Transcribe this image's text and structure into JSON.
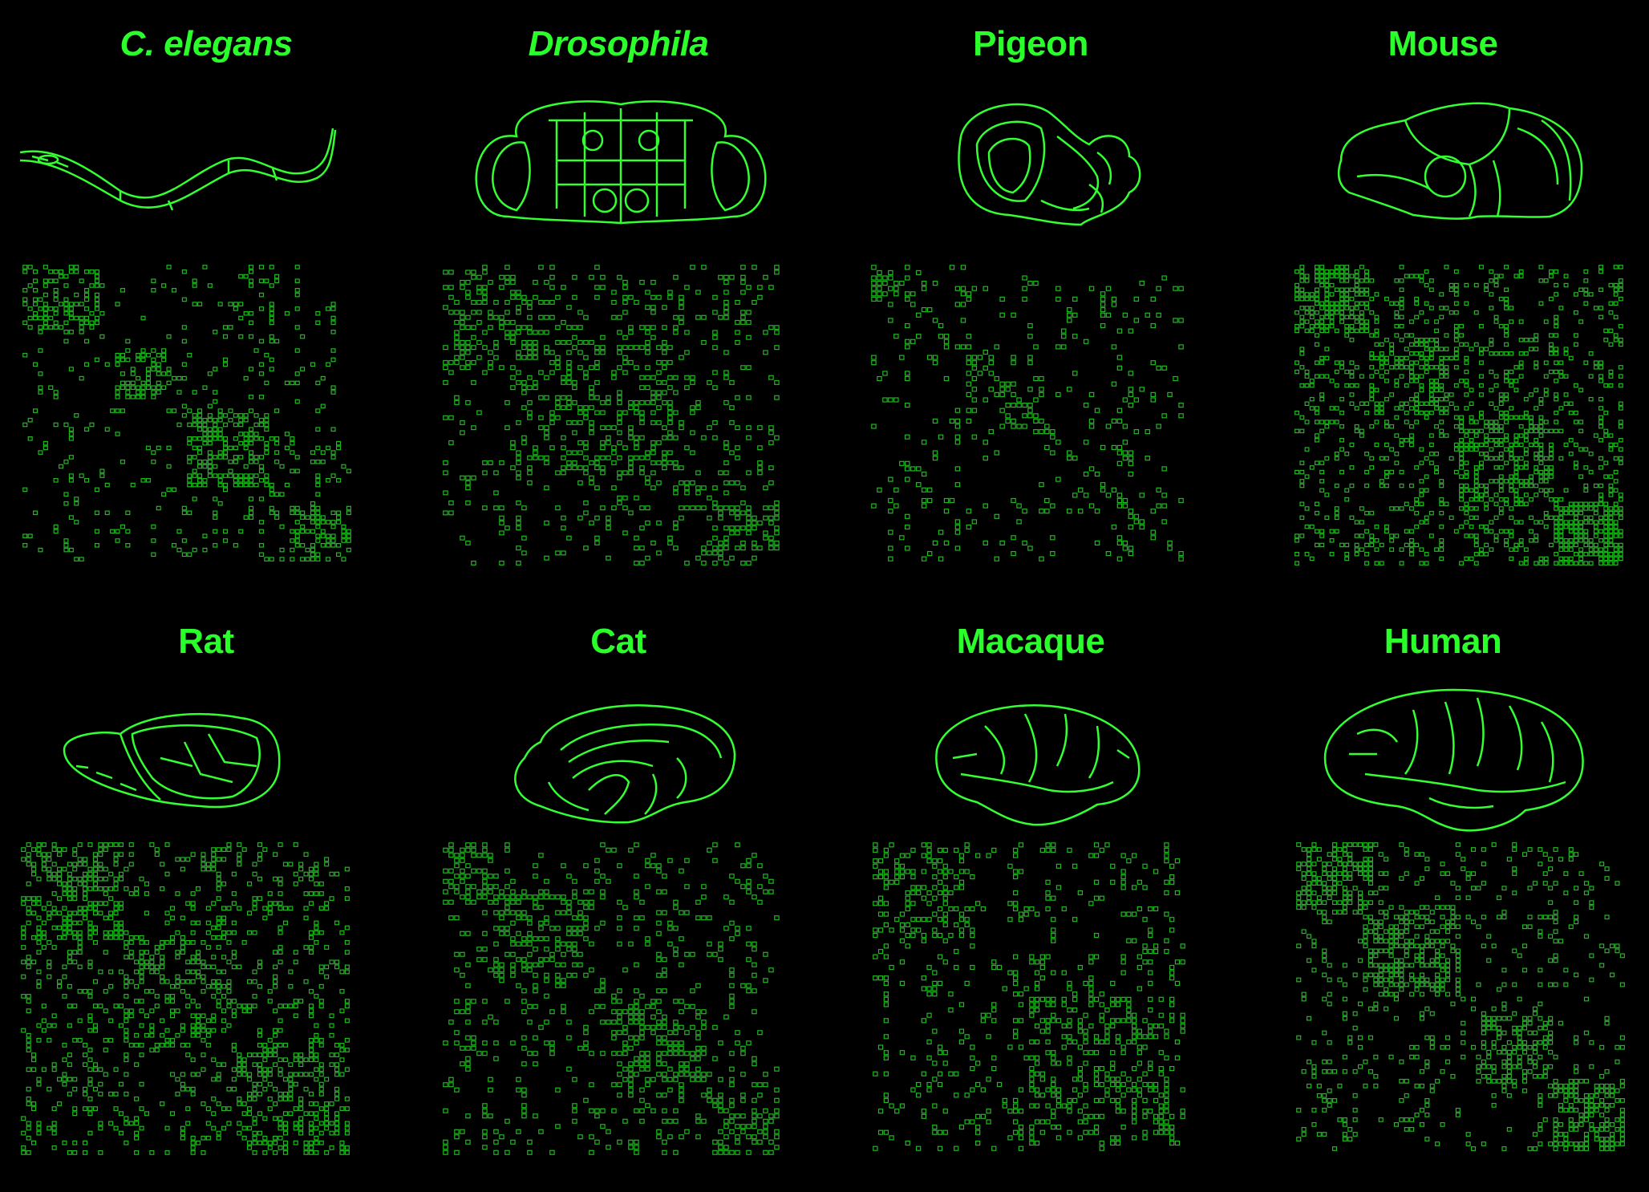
{
  "colors": {
    "background": "#000000",
    "title": "#2bff2b",
    "outline": "#33ff33",
    "matrix_dot": "#1fb81f"
  },
  "panels": [
    {
      "id": "celegans",
      "title": "C. elegans",
      "italic": true,
      "icon": "worm-icon",
      "matrix": {
        "n": 64,
        "blocks": [
          [
            0.0,
            0.22,
            0.5
          ],
          [
            0.28,
            0.45,
            0.55
          ],
          [
            0.5,
            0.75,
            0.55
          ],
          [
            0.8,
            1.0,
            0.55
          ]
        ],
        "background_density": 0.06
      }
    },
    {
      "id": "drosophila",
      "title": "Drosophila",
      "italic": true,
      "icon": "fly-brain-icon",
      "matrix": {
        "n": 60,
        "blocks": [
          [
            0.0,
            0.35,
            0.3
          ],
          [
            0.2,
            0.7,
            0.35
          ],
          [
            0.8,
            1.0,
            0.45
          ]
        ],
        "background_density": 0.12
      }
    },
    {
      "id": "pigeon",
      "title": "Pigeon",
      "italic": false,
      "icon": "pigeon-brain-icon",
      "matrix": {
        "n": 56,
        "blocks": [
          [
            0.0,
            0.12,
            0.55
          ],
          [
            0.3,
            0.55,
            0.2
          ]
        ],
        "background_density": 0.06
      }
    },
    {
      "id": "mouse",
      "title": "Mouse",
      "italic": false,
      "icon": "mouse-brain-icon",
      "matrix": {
        "n": 66,
        "blocks": [
          [
            0.0,
            0.22,
            0.7
          ],
          [
            0.22,
            0.5,
            0.45
          ],
          [
            0.5,
            0.78,
            0.55
          ],
          [
            0.78,
            1.0,
            0.7
          ]
        ],
        "background_density": 0.18
      }
    },
    {
      "id": "rat",
      "title": "Rat",
      "italic": false,
      "icon": "rat-brain-icon",
      "matrix": {
        "n": 64,
        "blocks": [
          [
            0.0,
            0.3,
            0.45
          ],
          [
            0.3,
            0.65,
            0.35
          ],
          [
            0.65,
            1.0,
            0.4
          ]
        ],
        "background_density": 0.14
      }
    },
    {
      "id": "cat",
      "title": "Cat",
      "italic": false,
      "icon": "cat-brain-icon",
      "matrix": {
        "n": 60,
        "blocks": [
          [
            0.0,
            0.2,
            0.45
          ],
          [
            0.15,
            0.45,
            0.4
          ],
          [
            0.5,
            0.78,
            0.45
          ],
          [
            0.8,
            1.0,
            0.4
          ]
        ],
        "background_density": 0.1
      }
    },
    {
      "id": "macaque",
      "title": "Macaque",
      "italic": false,
      "icon": "macaque-brain-icon",
      "matrix": {
        "n": 58,
        "blocks": [
          [
            0.0,
            0.3,
            0.4
          ],
          [
            0.5,
            0.95,
            0.35
          ]
        ],
        "background_density": 0.1
      }
    },
    {
      "id": "human",
      "title": "Human",
      "italic": false,
      "icon": "human-brain-icon",
      "matrix": {
        "n": 64,
        "blocks": [
          [
            0.0,
            0.22,
            0.6
          ],
          [
            0.2,
            0.5,
            0.55
          ],
          [
            0.55,
            0.78,
            0.55
          ],
          [
            0.78,
            1.0,
            0.6
          ]
        ],
        "background_density": 0.08
      }
    }
  ]
}
